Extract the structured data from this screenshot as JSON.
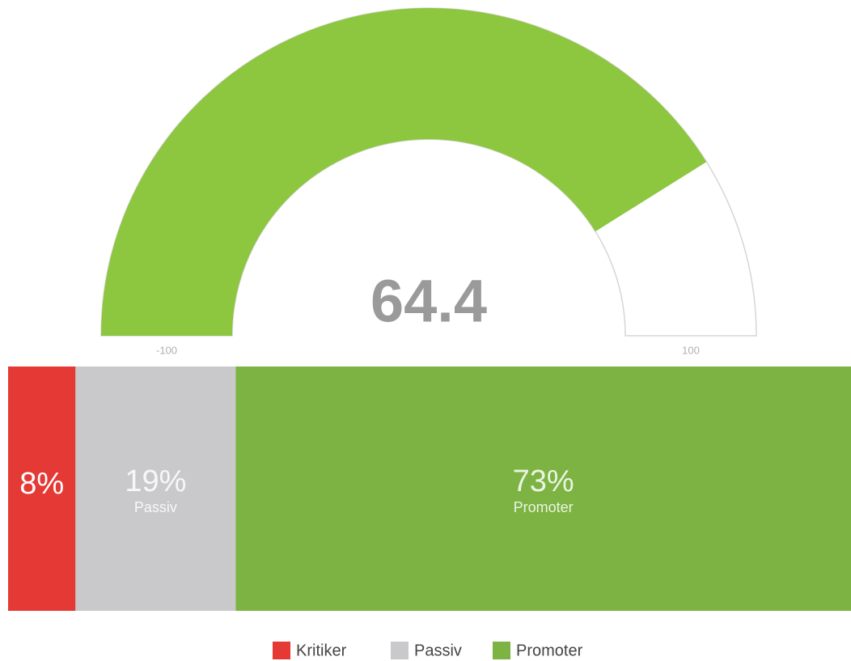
{
  "chart_data": [
    {
      "type": "gauge",
      "value": 64.4,
      "ylim": [
        -100,
        100
      ],
      "yticks": [
        -100,
        100
      ],
      "color": "#8dc63f"
    },
    {
      "type": "bar",
      "orientation": "horizontal",
      "stacked": true,
      "legend": "bottom",
      "series": [
        {
          "name": "Kritiker",
          "color": "#e53935",
          "values": [
            8
          ],
          "value_labels": [
            "8%"
          ]
        },
        {
          "name": "Passiv",
          "color": "#c9c9cb",
          "values": [
            19
          ],
          "value_labels": [
            "19%"
          ]
        },
        {
          "name": "Promoter",
          "color": "#7cb342",
          "values": [
            73
          ],
          "value_labels": [
            "73%"
          ]
        }
      ]
    }
  ]
}
